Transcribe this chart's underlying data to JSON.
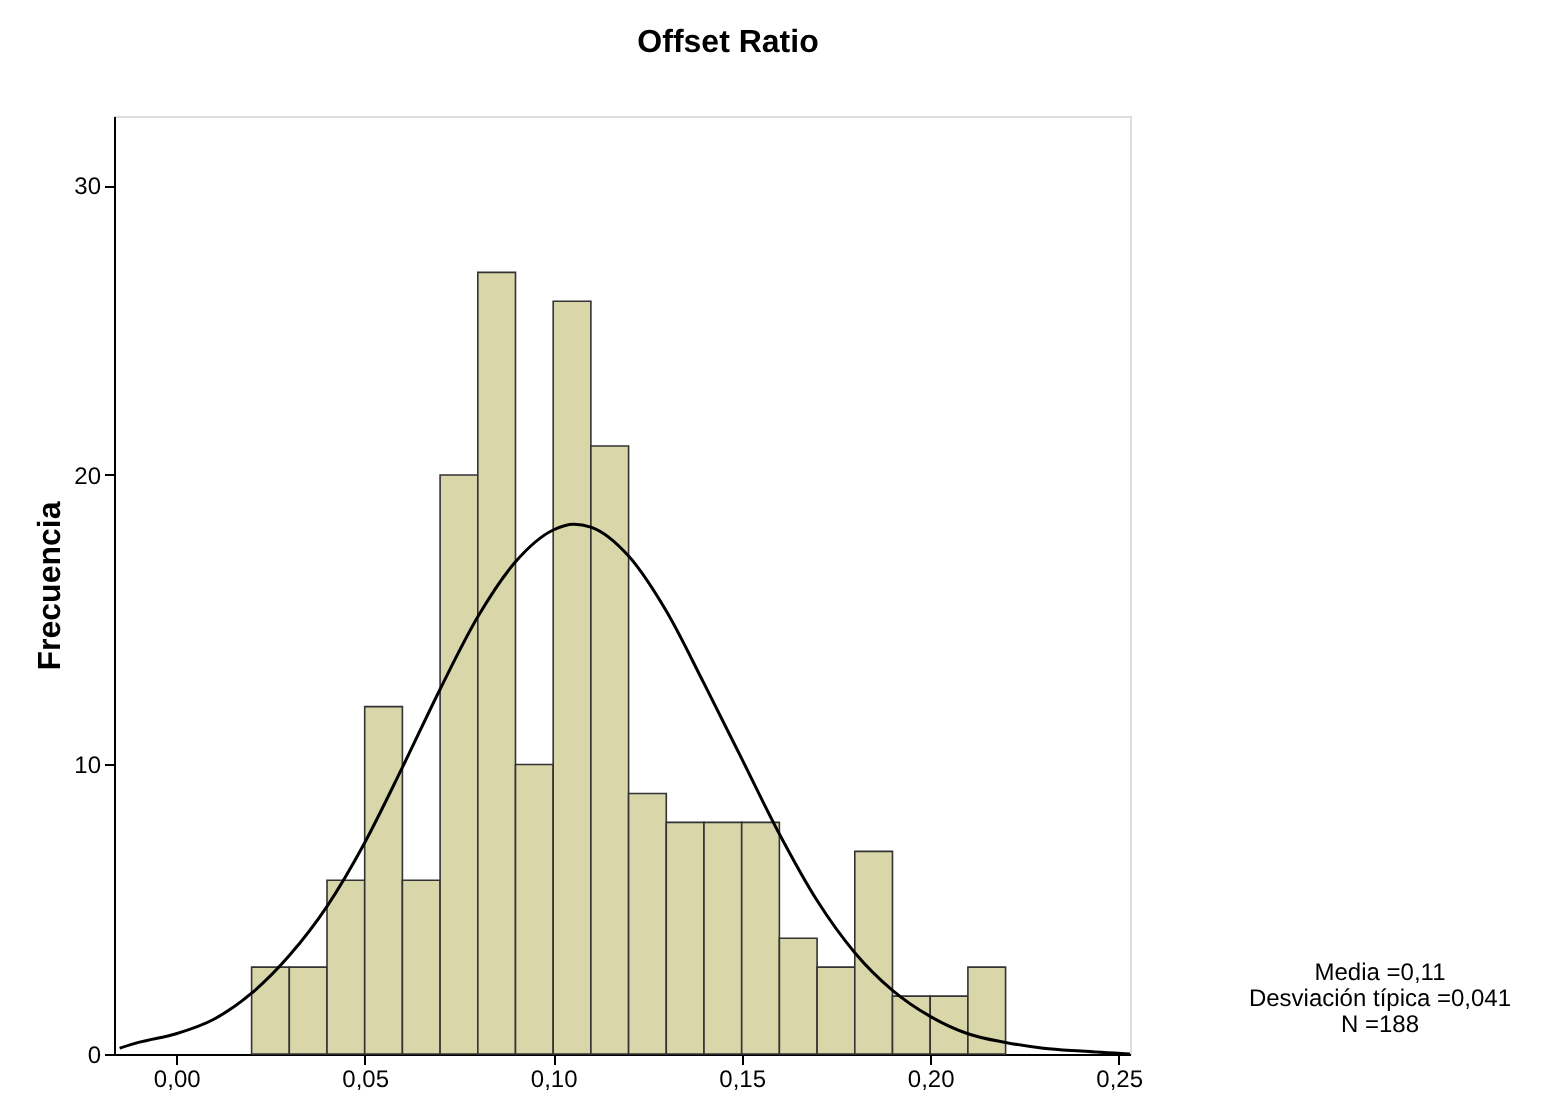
{
  "chart_data": {
    "type": "histogram",
    "title": "Offset Ratio",
    "ylabel": "Frecuencia",
    "bins": [
      0.02,
      0.03,
      0.04,
      0.05,
      0.06,
      0.07,
      0.08,
      0.09,
      0.1,
      0.11,
      0.12,
      0.13,
      0.14,
      0.15,
      0.16,
      0.17,
      0.18,
      0.19,
      0.2,
      0.21,
      0.22
    ],
    "values": [
      3,
      3,
      6,
      12,
      6,
      20,
      27,
      10,
      26,
      21,
      9,
      8,
      8,
      8,
      4,
      3,
      7,
      2,
      2,
      3
    ],
    "color": "#d9d6aa",
    "series": [
      {
        "type": "line",
        "color": "#000000",
        "x": [
          -0.015,
          -0.01,
          0.0,
          0.01,
          0.02,
          0.03,
          0.04,
          0.05,
          0.06,
          0.07,
          0.08,
          0.09,
          0.1,
          0.1055,
          0.11,
          0.12,
          0.13,
          0.14,
          0.15,
          0.16,
          0.17,
          0.18,
          0.19,
          0.2,
          0.21,
          0.22,
          0.23,
          0.24,
          0.253
        ],
        "values": [
          0.2,
          0.4,
          0.7,
          1.2,
          2.1,
          3.4,
          5.1,
          7.3,
          9.9,
          12.6,
          15.1,
          17.0,
          18.1,
          18.3,
          18.2,
          17.2,
          15.3,
          12.8,
          10.2,
          7.6,
          5.3,
          3.5,
          2.2,
          1.3,
          0.7,
          0.4,
          0.2,
          0.1,
          0.0
        ]
      }
    ],
    "xlim": [
      -0.0165,
      0.253
    ],
    "ylim": [
      0,
      32.4
    ],
    "xticks": [
      {
        "value": 0,
        "label": "0,00"
      },
      {
        "value": 0.05,
        "label": "0,05"
      },
      {
        "value": 0.1,
        "label": "0,10"
      },
      {
        "value": 0.15,
        "label": "0,15"
      },
      {
        "value": 0.2,
        "label": "0,20"
      },
      {
        "value": 0.25,
        "label": "0,25"
      }
    ],
    "yticks": [
      0,
      10,
      20,
      30
    ],
    "annotations": [
      "Media =0,11",
      "Desviación típica =0,041",
      "N =188"
    ]
  }
}
